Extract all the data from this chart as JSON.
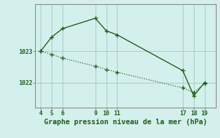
{
  "bg_color": "#d4f0ec",
  "line_color": "#1a5c1a",
  "grid_color": "#aacfc8",
  "axis_color": "#888888",
  "label_color": "#1a5c1a",
  "line1_x": [
    4,
    5,
    6,
    9,
    10,
    11,
    17,
    18,
    19
  ],
  "line1_y": [
    1023.0,
    1023.45,
    1023.72,
    1024.05,
    1023.65,
    1023.52,
    1022.38,
    1021.58,
    1022.0
  ],
  "line2_x": [
    4,
    5,
    6,
    9,
    10,
    11,
    17,
    18,
    19
  ],
  "line2_y": [
    1023.0,
    1022.9,
    1022.78,
    1022.52,
    1022.42,
    1022.33,
    1021.83,
    1021.68,
    1021.97
  ],
  "xticks": [
    4,
    5,
    6,
    9,
    10,
    11,
    17,
    18,
    19
  ],
  "ytick_labels": [
    "1023",
    "1022"
  ],
  "ytick_vals": [
    1023,
    1022
  ],
  "xlim": [
    3.5,
    20.0
  ],
  "ylim": [
    1021.2,
    1024.5
  ],
  "xlabel": "Graphe pression niveau de la mer (hPa)",
  "xlabel_fontsize": 7.5
}
